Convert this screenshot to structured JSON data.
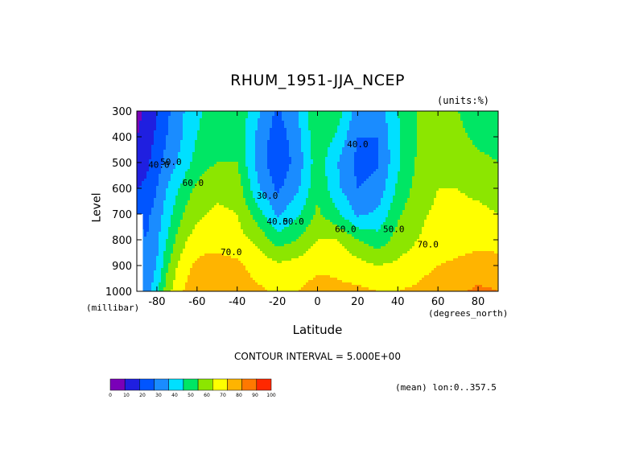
{
  "chart_data": {
    "type": "contour",
    "title": "RHUM_1951-JJA_NCEP",
    "units_note": "(units:%)",
    "xlabel": "Latitude",
    "xlabel_units": "(degrees_north)",
    "ylabel": "Level",
    "ylabel_units": "(millibar)",
    "xlim": [
      -90,
      90
    ],
    "ylim": [
      1000,
      300
    ],
    "x_ticks": [
      -80,
      -60,
      -40,
      -20,
      0,
      20,
      40,
      60,
      80
    ],
    "y_ticks": [
      300,
      400,
      500,
      600,
      700,
      800,
      900,
      1000
    ],
    "contour_interval_text": "CONTOUR INTERVAL = 5.000E+00",
    "mean_note": "(mean) lon:0..357.5",
    "colorbar": {
      "ticks": [
        0,
        10,
        20,
        30,
        40,
        50,
        60,
        70,
        80,
        90,
        100
      ],
      "colors": [
        "#7a00b8",
        "#1f1fe0",
        "#0055ff",
        "#1a8cff",
        "#00e0ff",
        "#00e664",
        "#8ce600",
        "#ffff00",
        "#ffb400",
        "#ff7800",
        "#ff2800"
      ]
    },
    "contour_labels": [
      {
        "text": "40.0",
        "lat": -79,
        "level": 520
      },
      {
        "text": "50.0",
        "lat": -73,
        "level": 510
      },
      {
        "text": "60.0",
        "lat": -62,
        "level": 590
      },
      {
        "text": "70.0",
        "lat": -43,
        "level": 860
      },
      {
        "text": "30.0",
        "lat": -25,
        "level": 640
      },
      {
        "text": "40.0",
        "lat": -20,
        "level": 740
      },
      {
        "text": "50.0",
        "lat": -12,
        "level": 740
      },
      {
        "text": "60.0",
        "lat": 14,
        "level": 770
      },
      {
        "text": "40.0",
        "lat": 20,
        "level": 440
      },
      {
        "text": "50.0",
        "lat": 38,
        "level": 770
      },
      {
        "text": "70.0",
        "lat": 55,
        "level": 830
      }
    ],
    "sample_grid": {
      "lat": [
        -90,
        -85,
        -80,
        -75,
        -70,
        -65,
        -60,
        -55,
        -50,
        -40,
        -30,
        -20,
        -10,
        0,
        10,
        20,
        30,
        40,
        50,
        60,
        70,
        80,
        90
      ],
      "level": [
        300,
        400,
        500,
        600,
        700,
        800,
        900,
        1000
      ],
      "rhum": [
        [
          7,
          12,
          20,
          28,
          35,
          42,
          48,
          52,
          55,
          58,
          42,
          28,
          40,
          60,
          55,
          35,
          35,
          50,
          60,
          65,
          60,
          55,
          55
        ],
        [
          10,
          15,
          22,
          30,
          36,
          44,
          50,
          54,
          56,
          58,
          38,
          24,
          36,
          58,
          48,
          30,
          30,
          48,
          60,
          65,
          62,
          58,
          57
        ],
        [
          14,
          18,
          25,
          34,
          40,
          47,
          54,
          58,
          60,
          60,
          37,
          22,
          34,
          56,
          40,
          27,
          29,
          48,
          62,
          68,
          66,
          62,
          60
        ],
        [
          20,
          22,
          30,
          40,
          48,
          56,
          62,
          66,
          67,
          66,
          42,
          28,
          38,
          58,
          42,
          30,
          33,
          52,
          64,
          70,
          70,
          68,
          66
        ],
        [
          30,
          28,
          34,
          45,
          55,
          63,
          68,
          70,
          72,
          70,
          55,
          38,
          48,
          62,
          52,
          38,
          42,
          58,
          68,
          72,
          72,
          72,
          70
        ],
        [
          32,
          30,
          38,
          50,
          62,
          70,
          74,
          76,
          76,
          74,
          68,
          55,
          60,
          70,
          70,
          60,
          54,
          64,
          70,
          74,
          76,
          77,
          76
        ],
        [
          36,
          32,
          40,
          58,
          70,
          78,
          82,
          84,
          84,
          82,
          76,
          72,
          74,
          78,
          78,
          74,
          70,
          72,
          76,
          80,
          82,
          84,
          84
        ],
        [
          40,
          34,
          48,
          65,
          76,
          82,
          86,
          88,
          86,
          85,
          82,
          78,
          80,
          84,
          82,
          82,
          80,
          80,
          82,
          86,
          88,
          92,
          90
        ]
      ]
    }
  }
}
